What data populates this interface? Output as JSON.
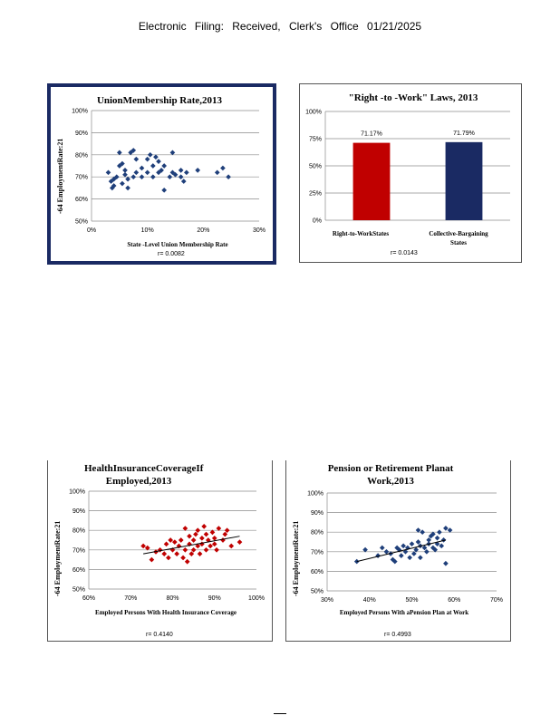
{
  "header": "Electronic Filing: Received, Clerk's Office 01/21/2025",
  "chart_data": [
    {
      "type": "scatter",
      "title": "UnionMembership Rate,2013",
      "xlabel": "State -Level Union Membership Rate",
      "ylabel": "-64 EmploymentRate:21",
      "x_ticks": [
        "0%",
        "10%",
        "20%",
        "30%"
      ],
      "y_ticks": [
        "50%",
        "60%",
        "70%",
        "80%",
        "90%",
        "100%"
      ],
      "xlim": [
        0,
        30
      ],
      "ylim": [
        50,
        100
      ],
      "r_label": "r= 0.0082",
      "color": "#1f3f7a",
      "trendline": null,
      "points": [
        [
          3,
          72
        ],
        [
          3.5,
          68
        ],
        [
          3.7,
          65
        ],
        [
          4,
          66
        ],
        [
          4,
          69
        ],
        [
          4.5,
          70
        ],
        [
          5,
          75
        ],
        [
          5,
          81
        ],
        [
          5.5,
          76
        ],
        [
          5.5,
          67
        ],
        [
          6,
          71
        ],
        [
          6,
          73
        ],
        [
          6.5,
          69
        ],
        [
          6.5,
          65
        ],
        [
          7,
          81
        ],
        [
          7.5,
          82
        ],
        [
          7.5,
          70
        ],
        [
          8,
          78
        ],
        [
          8,
          72
        ],
        [
          9,
          74
        ],
        [
          9,
          70
        ],
        [
          10,
          78
        ],
        [
          10,
          72
        ],
        [
          10.5,
          80
        ],
        [
          11,
          75
        ],
        [
          11.5,
          79
        ],
        [
          11,
          70
        ],
        [
          12,
          77
        ],
        [
          12,
          72
        ],
        [
          12.5,
          73
        ],
        [
          13,
          75
        ],
        [
          13,
          64
        ],
        [
          14,
          70
        ],
        [
          14.5,
          81
        ],
        [
          14.5,
          72
        ],
        [
          15,
          71
        ],
        [
          16,
          73
        ],
        [
          16,
          70
        ],
        [
          16.5,
          68
        ],
        [
          17,
          72
        ],
        [
          19,
          73
        ],
        [
          22.5,
          72
        ],
        [
          23.5,
          74
        ],
        [
          24.5,
          70
        ]
      ]
    },
    {
      "type": "bar",
      "title": "\"Right -to -Work\" Laws, 2013",
      "categories": [
        "Right-to-WorkStates",
        "Collective-Bargaining States"
      ],
      "values": [
        71.17,
        71.79
      ],
      "value_labels": [
        "71.17%",
        "71.79%"
      ],
      "colors": [
        "#c00000",
        "#1a2a63"
      ],
      "y_ticks": [
        "0%",
        "25%",
        "50%",
        "75%",
        "100%"
      ],
      "ylim": [
        0,
        100
      ],
      "r_label": "r= 0.0143"
    },
    {
      "type": "scatter",
      "title": "HealthInsuranceCoverageIf Employed,2013",
      "xlabel": "Employed Persons With Health Insurance Coverage",
      "ylabel": "-64 EmploymentRate:21",
      "x_ticks": [
        "60%",
        "70%",
        "80%",
        "90%",
        "100%"
      ],
      "y_ticks": [
        "50%",
        "60%",
        "70%",
        "80%",
        "90%",
        "100%"
      ],
      "xlim": [
        60,
        100
      ],
      "ylim": [
        50,
        100
      ],
      "r_label": "r= 0.4140",
      "color": "#c00000",
      "trendline": [
        [
          73,
          68
        ],
        [
          96,
          77
        ]
      ],
      "points": [
        [
          73,
          72
        ],
        [
          74,
          71
        ],
        [
          75,
          65
        ],
        [
          76,
          69
        ],
        [
          77,
          70
        ],
        [
          78,
          68
        ],
        [
          78.5,
          73
        ],
        [
          79,
          66
        ],
        [
          79.5,
          75
        ],
        [
          80,
          70
        ],
        [
          80.5,
          74
        ],
        [
          81,
          68
        ],
        [
          81.5,
          72
        ],
        [
          82,
          75
        ],
        [
          82.5,
          66
        ],
        [
          83,
          70
        ],
        [
          83,
          81
        ],
        [
          83.5,
          64
        ],
        [
          84,
          73
        ],
        [
          84,
          77
        ],
        [
          84.5,
          68
        ],
        [
          85,
          75
        ],
        [
          85,
          70
        ],
        [
          85.5,
          78
        ],
        [
          86,
          72
        ],
        [
          86,
          80
        ],
        [
          86.5,
          68
        ],
        [
          87,
          76
        ],
        [
          87,
          73
        ],
        [
          87.5,
          82
        ],
        [
          88,
          70
        ],
        [
          88,
          78
        ],
        [
          88.5,
          75
        ],
        [
          89,
          72
        ],
        [
          89.5,
          79
        ],
        [
          90,
          73
        ],
        [
          90,
          76
        ],
        [
          90.5,
          70
        ],
        [
          91,
          81
        ],
        [
          92,
          75
        ],
        [
          92.5,
          78
        ],
        [
          93,
          80
        ],
        [
          94,
          72
        ],
        [
          96,
          74
        ]
      ]
    },
    {
      "type": "scatter",
      "title": "Pension or Retirement Planat Work,2013",
      "xlabel": "Employed Persons With aPension Plan at Work",
      "ylabel": "-64 EmploymentRate:21",
      "x_ticks": [
        "30%",
        "40%",
        "50%",
        "60%",
        "70%"
      ],
      "y_ticks": [
        "50%",
        "60%",
        "70%",
        "80%",
        "90%",
        "100%"
      ],
      "xlim": [
        30,
        70
      ],
      "ylim": [
        50,
        100
      ],
      "r_label": "r= 0.4993",
      "color": "#1f3f7a",
      "trendline": [
        [
          37,
          65
        ],
        [
          58,
          76
        ]
      ],
      "points": [
        [
          37,
          65
        ],
        [
          39,
          71
        ],
        [
          42,
          68
        ],
        [
          43,
          72
        ],
        [
          44,
          70
        ],
        [
          45,
          69
        ],
        [
          45.5,
          66
        ],
        [
          46,
          65
        ],
        [
          46.5,
          72
        ],
        [
          47,
          71
        ],
        [
          47.5,
          68
        ],
        [
          48,
          73
        ],
        [
          48.5,
          70
        ],
        [
          49,
          72
        ],
        [
          49.5,
          67
        ],
        [
          50,
          74
        ],
        [
          50.5,
          69
        ],
        [
          51,
          71
        ],
        [
          51.5,
          75
        ],
        [
          51.5,
          81
        ],
        [
          52,
          67
        ],
        [
          52,
          73
        ],
        [
          52.5,
          80
        ],
        [
          53,
          72
        ],
        [
          53.5,
          70
        ],
        [
          54,
          76
        ],
        [
          54,
          74
        ],
        [
          54.5,
          78
        ],
        [
          55,
          72
        ],
        [
          55,
          79
        ],
        [
          55.5,
          71
        ],
        [
          56,
          77
        ],
        [
          56,
          74
        ],
        [
          56.5,
          80
        ],
        [
          57,
          73
        ],
        [
          57.5,
          76
        ],
        [
          58,
          82
        ],
        [
          58,
          64
        ],
        [
          59,
          81
        ]
      ]
    }
  ]
}
